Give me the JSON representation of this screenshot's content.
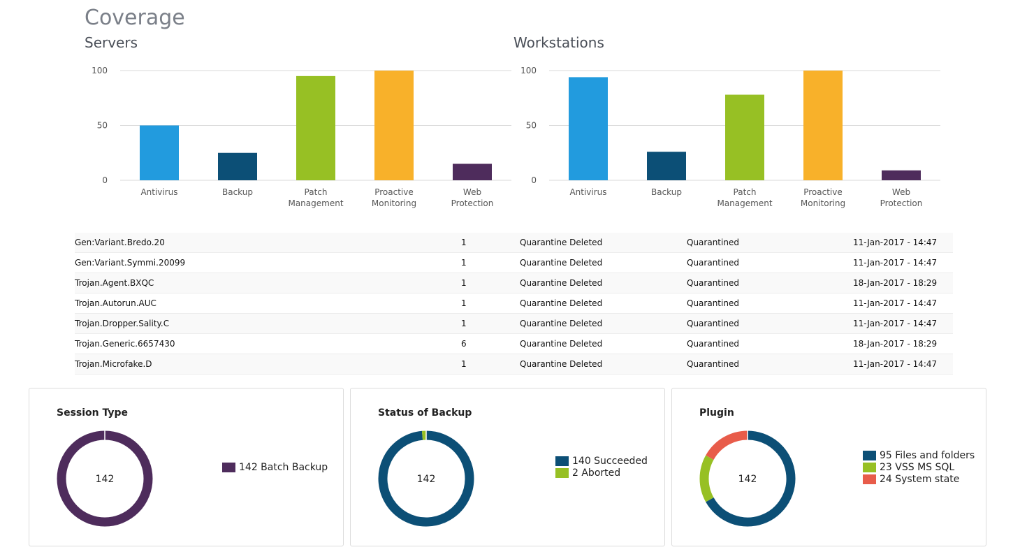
{
  "page_title": "Coverage",
  "chart_data": [
    {
      "type": "bar",
      "title": "Servers",
      "categories": [
        "Antivirus",
        "Backup",
        "Patch Management",
        "Proactive Monitoring",
        "Web Protection"
      ],
      "category_lines": [
        [
          "Antivirus"
        ],
        [
          "Backup"
        ],
        [
          "Patch",
          "Management"
        ],
        [
          "Proactive",
          "Monitoring"
        ],
        [
          "Web",
          "Protection"
        ]
      ],
      "values": [
        50,
        25,
        95,
        100,
        15
      ],
      "colors": [
        "#229bde",
        "#0c4f76",
        "#97c024",
        "#f8b12a",
        "#4e2c5c"
      ],
      "yticks": [
        0,
        50,
        100
      ],
      "ylim": [
        0,
        100
      ],
      "grid": true
    },
    {
      "type": "bar",
      "title": "Workstations",
      "categories": [
        "Antivirus",
        "Backup",
        "Patch Management",
        "Proactive Monitoring",
        "Web Protection"
      ],
      "category_lines": [
        [
          "Antivirus"
        ],
        [
          "Backup"
        ],
        [
          "Patch",
          "Management"
        ],
        [
          "Proactive",
          "Monitoring"
        ],
        [
          "Web",
          "Protection"
        ]
      ],
      "values": [
        94,
        26,
        78,
        100,
        9
      ],
      "colors": [
        "#229bde",
        "#0c4f76",
        "#97c024",
        "#f8b12a",
        "#4e2c5c"
      ],
      "yticks": [
        0,
        50,
        100
      ],
      "ylim": [
        0,
        100
      ],
      "grid": true
    },
    {
      "type": "pie",
      "title": "Session Type",
      "center_label": "142",
      "slices": [
        {
          "label": "142 Batch Backup",
          "value": 142,
          "color": "#4e2c5c"
        }
      ]
    },
    {
      "type": "pie",
      "title": "Status of Backup",
      "center_label": "142",
      "slices": [
        {
          "label": "140 Succeeded",
          "value": 140,
          "color": "#0c4f76"
        },
        {
          "label": "2 Aborted",
          "value": 2,
          "color": "#97c024"
        }
      ]
    },
    {
      "type": "pie",
      "title": "Plugin",
      "center_label": "142",
      "slices": [
        {
          "label": "95 Files and folders",
          "value": 95,
          "color": "#0c4f76"
        },
        {
          "label": "23 VSS MS SQL",
          "value": 23,
          "color": "#97c024"
        },
        {
          "label": "24 System state",
          "value": 24,
          "color": "#e85c4a"
        }
      ]
    }
  ],
  "threats": [
    {
      "name": "Gen:Variant.Bredo.20",
      "count": "1",
      "action": "Quarantine Deleted",
      "status": "Quarantined",
      "date": "11-Jan-2017 - 14:47"
    },
    {
      "name": "Gen:Variant.Symmi.20099",
      "count": "1",
      "action": "Quarantine Deleted",
      "status": "Quarantined",
      "date": "11-Jan-2017 - 14:47"
    },
    {
      "name": "Trojan.Agent.BXQC",
      "count": "1",
      "action": "Quarantine Deleted",
      "status": "Quarantined",
      "date": "18-Jan-2017 - 18:29"
    },
    {
      "name": "Trojan.Autorun.AUC",
      "count": "1",
      "action": "Quarantine Deleted",
      "status": "Quarantined",
      "date": "11-Jan-2017 - 14:47"
    },
    {
      "name": "Trojan.Dropper.Sality.C",
      "count": "1",
      "action": "Quarantine Deleted",
      "status": "Quarantined",
      "date": "11-Jan-2017 - 14:47"
    },
    {
      "name": "Trojan.Generic.6657430",
      "count": "6",
      "action": "Quarantine Deleted",
      "status": "Quarantined",
      "date": "18-Jan-2017 - 18:29"
    },
    {
      "name": "Trojan.Microfake.D",
      "count": "1",
      "action": "Quarantine Deleted",
      "status": "Quarantined",
      "date": "11-Jan-2017 - 14:47"
    }
  ]
}
